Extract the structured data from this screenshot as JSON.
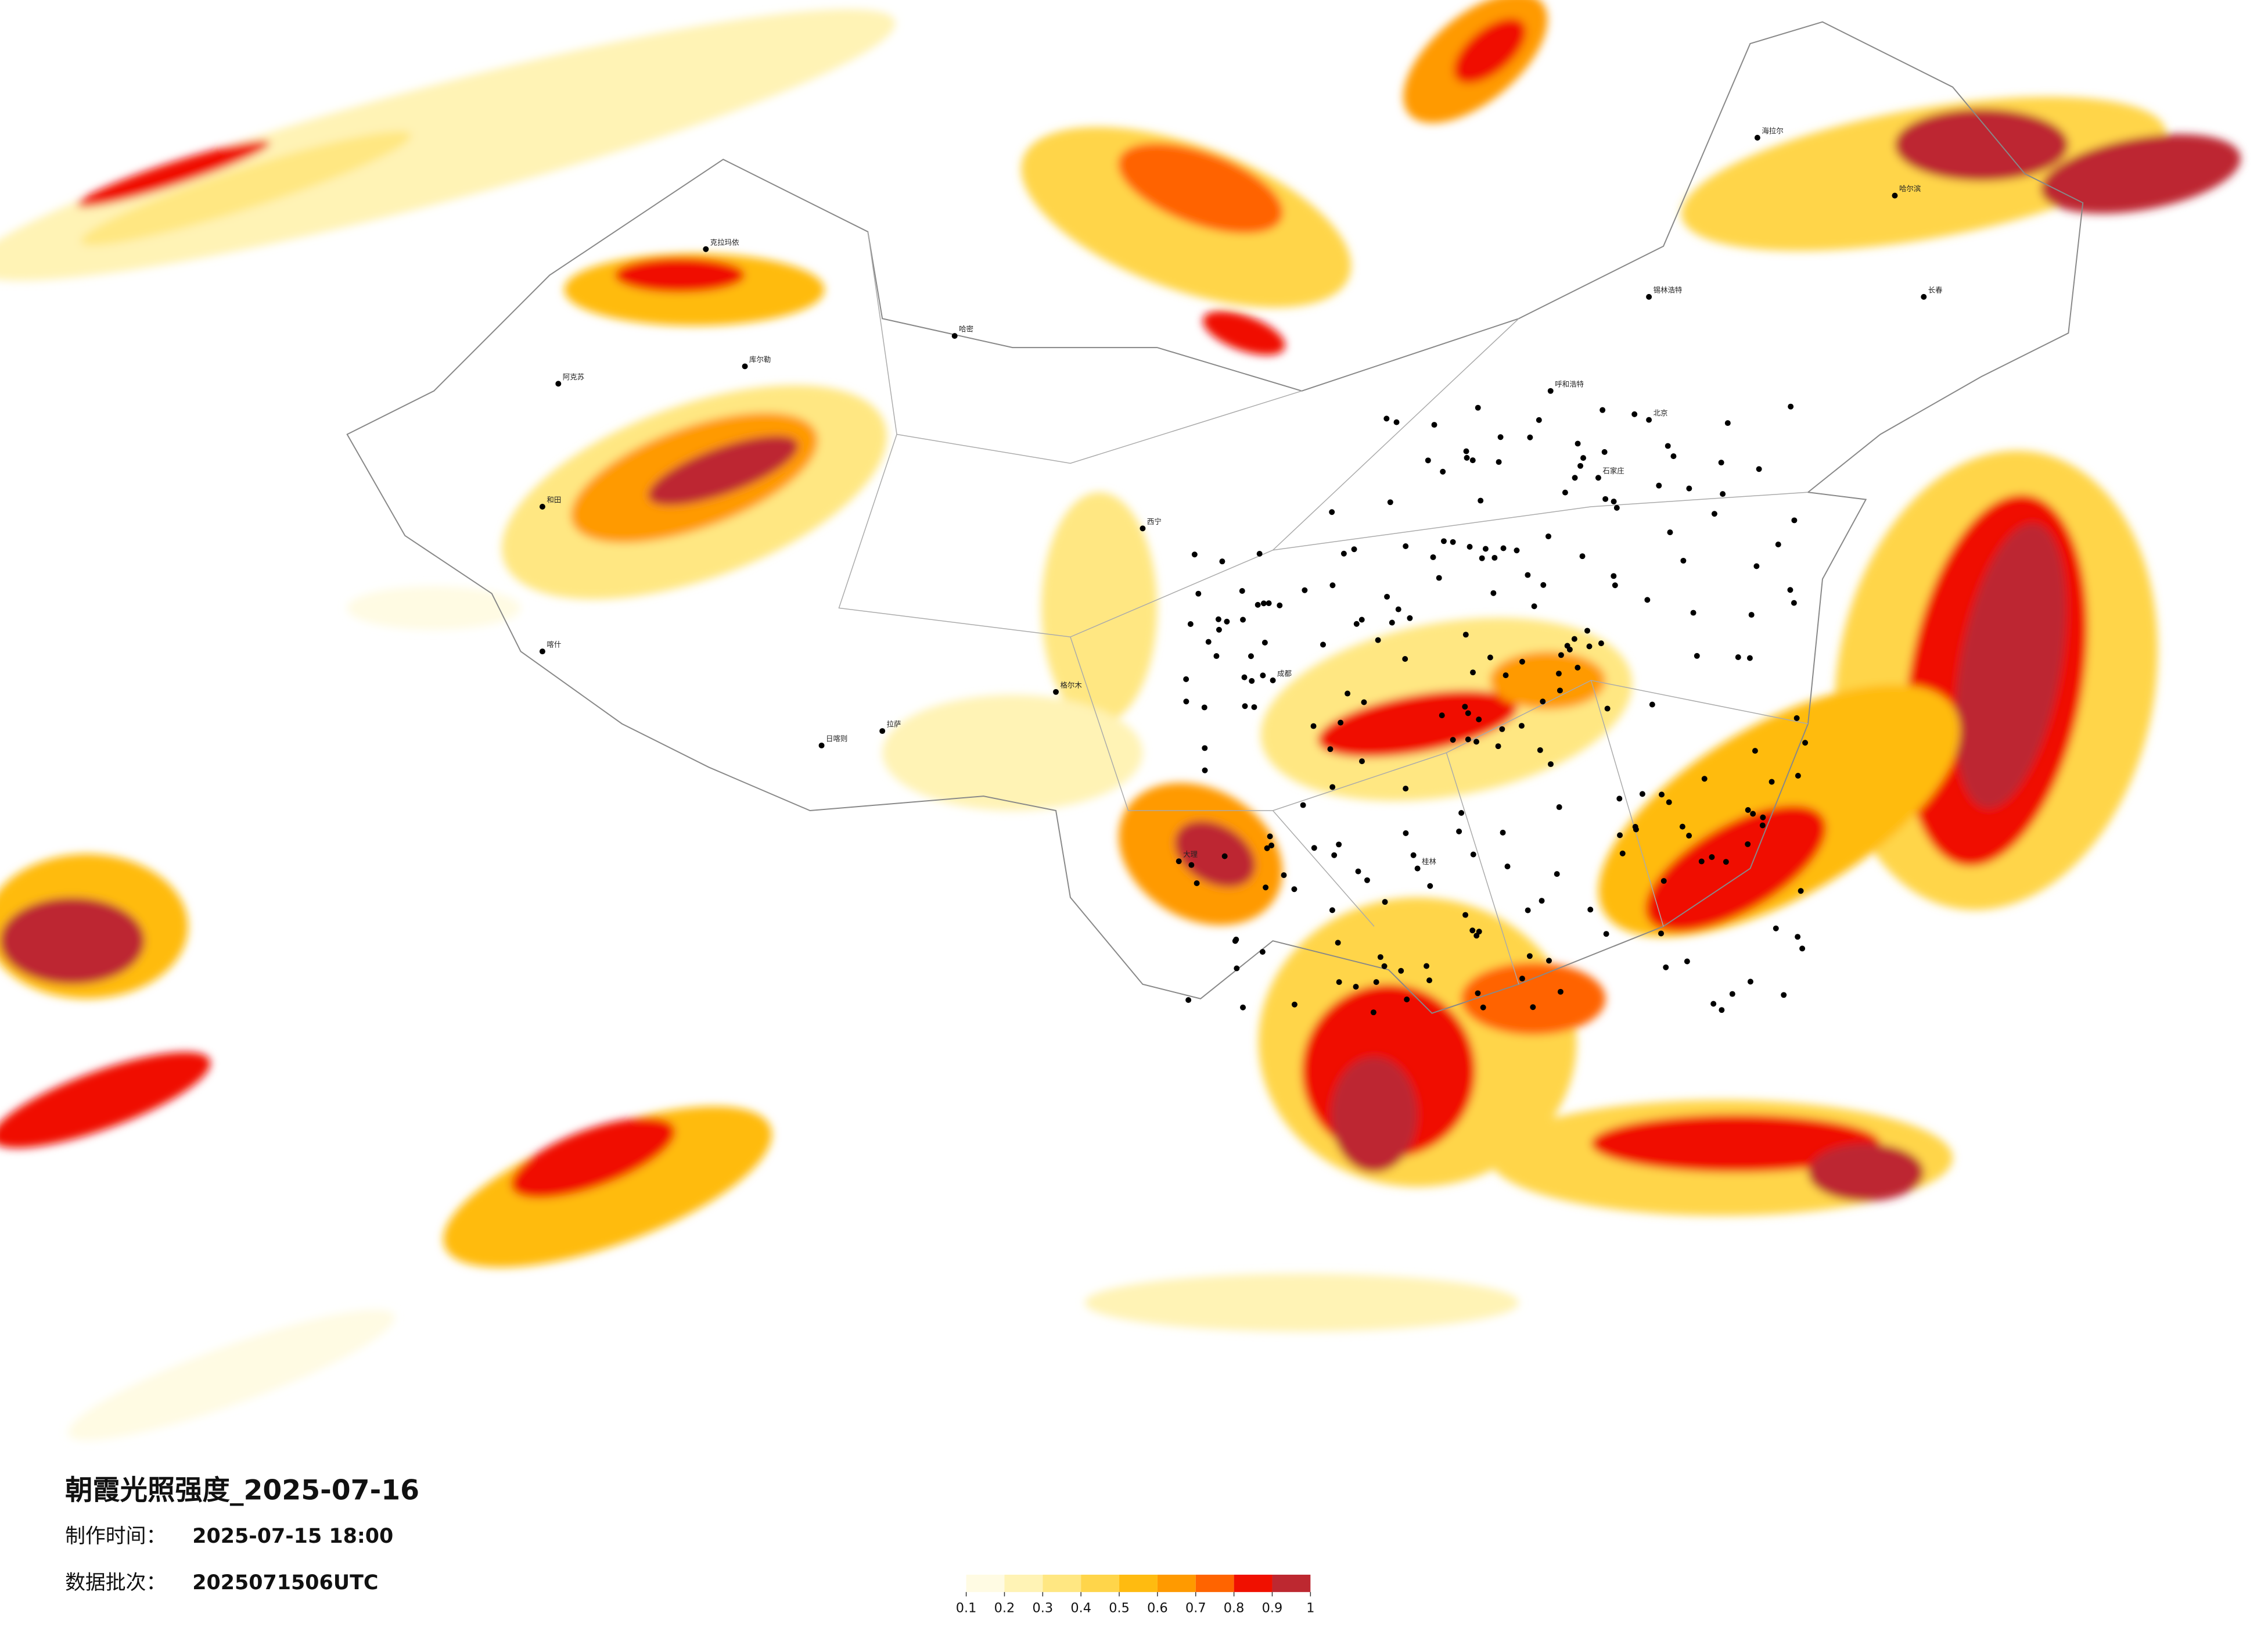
{
  "title": "朝霞光照强度_2025-07-16",
  "info": [
    {
      "label": "制作时间：",
      "value": "2025-07-15 18:00"
    },
    {
      "label": "数据批次：",
      "value": "2025071506UTC"
    }
  ],
  "legend": {
    "colors": [
      "#fffbe3",
      "#fff3b5",
      "#ffe782",
      "#ffd54a",
      "#ffbb10",
      "#ff9a00",
      "#ff6400",
      "#f01000",
      "#bd2830"
    ],
    "ticks": [
      0.1,
      0.2,
      0.3,
      0.4,
      0.5,
      0.6,
      0.7,
      0.8,
      0.9,
      1
    ]
  },
  "cities": [
    {
      "name": "克拉玛依"
    },
    {
      "name": "哈密"
    },
    {
      "name": "库尔勒"
    },
    {
      "name": "阿克苏"
    },
    {
      "name": "和田"
    },
    {
      "name": "日喀则"
    },
    {
      "name": "拉萨"
    },
    {
      "name": "呼和浩特"
    },
    {
      "name": "北京"
    },
    {
      "name": "石家庄"
    },
    {
      "name": "哈尔滨"
    },
    {
      "name": "长春"
    },
    {
      "name": "海拉尔"
    },
    {
      "name": "锡林浩特"
    },
    {
      "name": "格尔木"
    },
    {
      "name": "西宁"
    },
    {
      "name": "成都"
    },
    {
      "name": "大理"
    },
    {
      "name": "桂林"
    },
    {
      "name": "喀什"
    }
  ]
}
